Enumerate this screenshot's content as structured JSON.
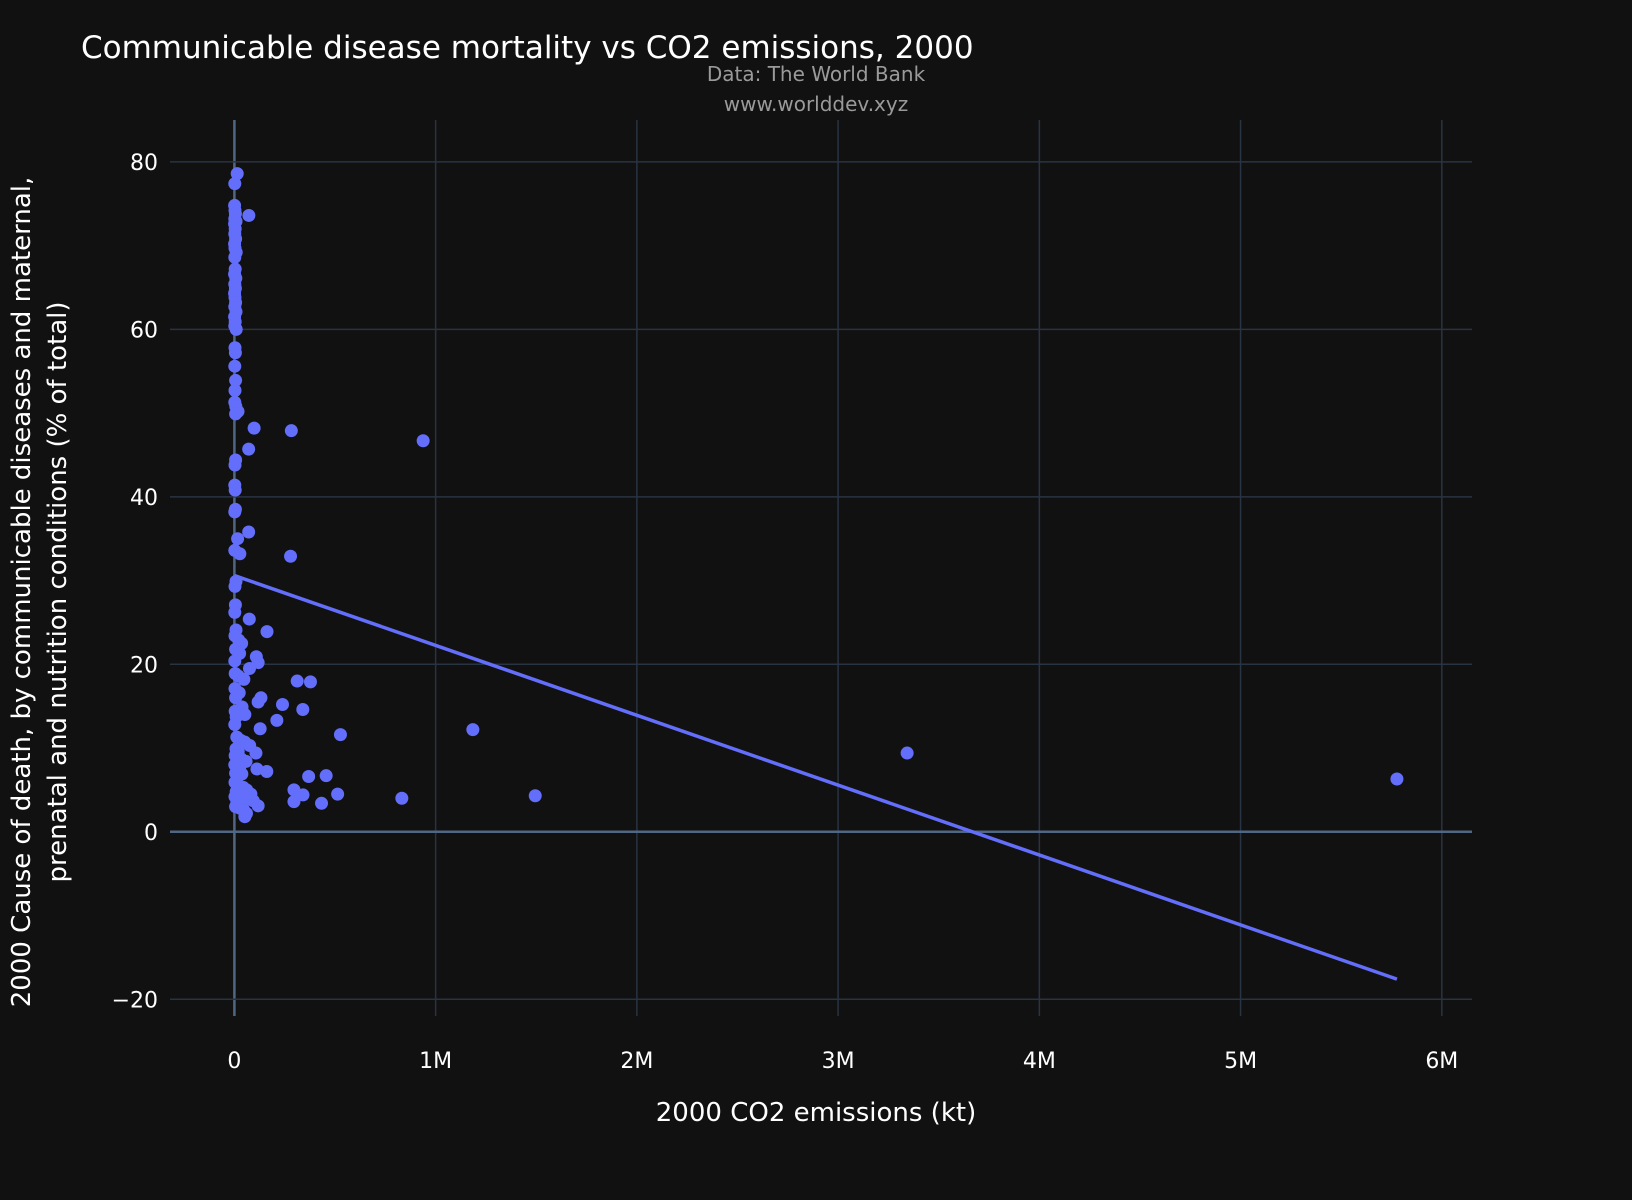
{
  "chart_data": {
    "type": "scatter",
    "title": "Communicable disease mortality vs CO2 emissions, 2000",
    "subtitle_lines": [
      "Data: The World Bank",
      "www.worlddev.xyz"
    ],
    "xlabel": "2000 CO2 emissions (kt)",
    "ylabel_lines": [
      "2000 Cause of death, by communicable diseases and maternal,",
      "prenatal and nutrition conditions (% of total)"
    ],
    "xlim": [
      -320000,
      6150000
    ],
    "ylim": [
      -22,
      85
    ],
    "x_ticks": [
      0,
      1000000,
      2000000,
      3000000,
      4000000,
      5000000,
      6000000
    ],
    "x_tick_labels": [
      "0",
      "1M",
      "2M",
      "3M",
      "4M",
      "5M",
      "6M"
    ],
    "y_ticks": [
      -20,
      0,
      20,
      40,
      60,
      80
    ],
    "y_tick_labels": [
      "−20",
      "0",
      "20",
      "40",
      "60",
      "80"
    ],
    "grid": true,
    "marker_color": "#636efa",
    "background": "#111111",
    "points": [
      [
        14000,
        78.6
      ],
      [
        2000,
        77.4
      ],
      [
        1000,
        74.8
      ],
      [
        3000,
        74.2
      ],
      [
        5000,
        73.8
      ],
      [
        72000,
        73.6
      ],
      [
        2000,
        73.2
      ],
      [
        8000,
        72.9
      ],
      [
        1000,
        72.6
      ],
      [
        4000,
        72.0
      ],
      [
        2000,
        71.4
      ],
      [
        6000,
        70.8
      ],
      [
        1000,
        70.2
      ],
      [
        3000,
        69.7
      ],
      [
        9000,
        69.2
      ],
      [
        2000,
        68.6
      ],
      [
        4000,
        67.2
      ],
      [
        1000,
        66.6
      ],
      [
        7000,
        66.1
      ],
      [
        2000,
        65.4
      ],
      [
        5000,
        64.9
      ],
      [
        1000,
        64.3
      ],
      [
        3000,
        63.8
      ],
      [
        6000,
        63.2
      ],
      [
        2000,
        62.7
      ],
      [
        8000,
        62.1
      ],
      [
        1000,
        61.5
      ],
      [
        4000,
        60.9
      ],
      [
        2000,
        60.4
      ],
      [
        9000,
        60.0
      ],
      [
        3000,
        57.8
      ],
      [
        5000,
        57.2
      ],
      [
        2000,
        55.6
      ],
      [
        6000,
        53.9
      ],
      [
        3000,
        52.7
      ],
      [
        2000,
        51.3
      ],
      [
        7000,
        50.8
      ],
      [
        18000,
        50.2
      ],
      [
        6000,
        49.9
      ],
      [
        98000,
        48.2
      ],
      [
        283000,
        47.9
      ],
      [
        938000,
        46.7
      ],
      [
        71000,
        45.7
      ],
      [
        6000,
        44.4
      ],
      [
        3000,
        43.8
      ],
      [
        2000,
        41.4
      ],
      [
        4000,
        40.8
      ],
      [
        5000,
        38.5
      ],
      [
        2000,
        38.2
      ],
      [
        71000,
        35.8
      ],
      [
        16000,
        35.0
      ],
      [
        2000,
        33.6
      ],
      [
        27000,
        33.2
      ],
      [
        279000,
        32.9
      ],
      [
        8000,
        29.9
      ],
      [
        3000,
        29.3
      ],
      [
        5000,
        27.1
      ],
      [
        2000,
        26.2
      ],
      [
        74000,
        25.4
      ],
      [
        8000,
        24.1
      ],
      [
        162000,
        23.9
      ],
      [
        3000,
        23.4
      ],
      [
        21000,
        22.9
      ],
      [
        36000,
        22.5
      ],
      [
        6000,
        21.8
      ],
      [
        26000,
        21.3
      ],
      [
        109000,
        20.9
      ],
      [
        2000,
        20.4
      ],
      [
        118000,
        20.2
      ],
      [
        75000,
        19.5
      ],
      [
        4000,
        18.9
      ],
      [
        19000,
        18.6
      ],
      [
        47000,
        18.2
      ],
      [
        312000,
        18.0
      ],
      [
        378000,
        17.9
      ],
      [
        3000,
        17.1
      ],
      [
        24000,
        16.6
      ],
      [
        6000,
        16.0
      ],
      [
        132000,
        16.0
      ],
      [
        118000,
        15.5
      ],
      [
        239000,
        15.2
      ],
      [
        38000,
        14.9
      ],
      [
        4000,
        14.4
      ],
      [
        28000,
        14.3
      ],
      [
        52000,
        14.0
      ],
      [
        340000,
        14.6
      ],
      [
        9000,
        13.7
      ],
      [
        211000,
        13.3
      ],
      [
        2000,
        12.8
      ],
      [
        128000,
        12.3
      ],
      [
        1185000,
        12.2
      ],
      [
        527000,
        11.6
      ],
      [
        12000,
        11.3
      ],
      [
        33000,
        10.9
      ],
      [
        52000,
        10.7
      ],
      [
        76000,
        10.3
      ],
      [
        8000,
        9.9
      ],
      [
        19000,
        9.6
      ],
      [
        107000,
        9.4
      ],
      [
        3343000,
        9.4
      ],
      [
        4000,
        9.1
      ],
      [
        34000,
        8.7
      ],
      [
        58000,
        8.4
      ],
      [
        2000,
        8.0
      ],
      [
        26000,
        7.6
      ],
      [
        112000,
        7.5
      ],
      [
        161000,
        7.2
      ],
      [
        6000,
        7.0
      ],
      [
        37000,
        6.9
      ],
      [
        369000,
        6.6
      ],
      [
        456000,
        6.7
      ],
      [
        5777000,
        6.3
      ],
      [
        3000,
        5.9
      ],
      [
        18000,
        5.6
      ],
      [
        44000,
        5.3
      ],
      [
        61000,
        5.0
      ],
      [
        296000,
        5.0
      ],
      [
        9000,
        4.8
      ],
      [
        30000,
        4.6
      ],
      [
        82000,
        4.5
      ],
      [
        341000,
        4.4
      ],
      [
        513000,
        4.5
      ],
      [
        1495000,
        4.3
      ],
      [
        3000,
        4.2
      ],
      [
        22000,
        4.0
      ],
      [
        54000,
        3.9
      ],
      [
        94000,
        3.7
      ],
      [
        832000,
        4.0
      ],
      [
        12000,
        3.5
      ],
      [
        40000,
        3.3
      ],
      [
        296000,
        3.6
      ],
      [
        433000,
        3.4
      ],
      [
        118000,
        3.1
      ],
      [
        6000,
        3.0
      ],
      [
        28000,
        2.8
      ],
      [
        46000,
        2.6
      ],
      [
        60000,
        2.2
      ],
      [
        52000,
        1.8
      ]
    ],
    "trendline": {
      "name": "",
      "x": [
        0,
        5777000
      ],
      "y": [
        30.6,
        -17.6
      ],
      "color": "#636efa"
    }
  }
}
